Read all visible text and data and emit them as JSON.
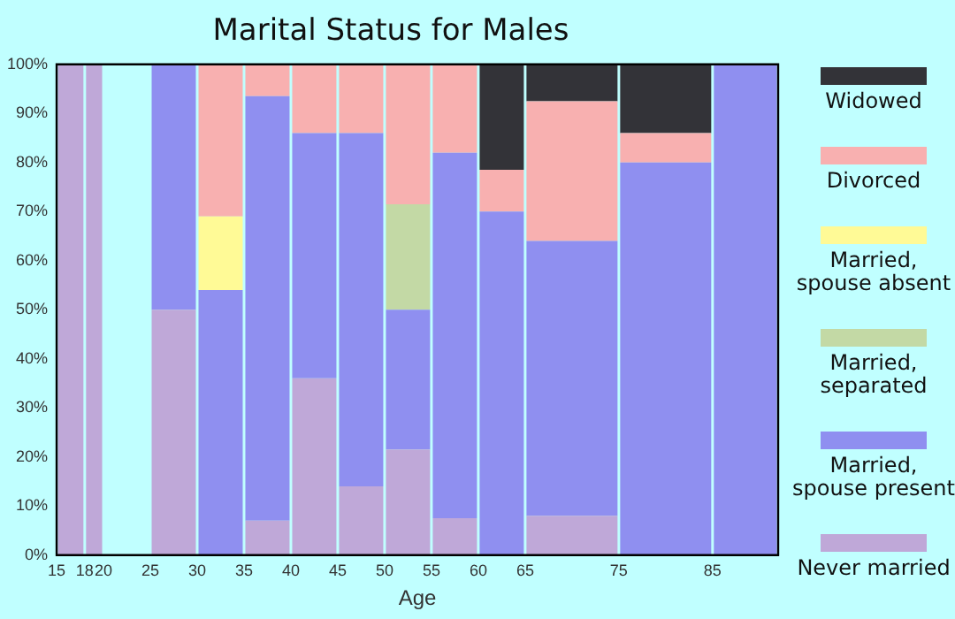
{
  "chart_data": {
    "type": "bar",
    "title": "Marital Status for Males",
    "xlabel": "Age",
    "x": [
      16.5,
      19,
      22.5,
      27.5,
      32.5,
      37.5,
      42.5,
      47.5,
      52.5,
      57.5,
      62.5,
      70,
      80,
      88.5
    ],
    "stacked": true,
    "series": [
      {
        "name": "Never married",
        "color": "#bfa8d8",
        "values": [
          100,
          100,
          null,
          50,
          0,
          7,
          36,
          14,
          21.5,
          7.5,
          0,
          8,
          0,
          0
        ]
      },
      {
        "name": "Married, spouse present",
        "color": "#8f8ff0",
        "values": [
          0,
          0,
          null,
          50,
          54,
          86.5,
          50,
          72,
          28.5,
          74.5,
          70,
          56,
          80,
          100
        ]
      },
      {
        "name": "Married, separated",
        "color": "#c3d9a5",
        "values": [
          0,
          0,
          null,
          0,
          0,
          0,
          0,
          0,
          21.5,
          0,
          0,
          0,
          0,
          0
        ]
      },
      {
        "name": "Married, spouse absent",
        "color": "#fffa96",
        "values": [
          0,
          0,
          null,
          0,
          15,
          0,
          0,
          0,
          0,
          0,
          0,
          0,
          0,
          0
        ]
      },
      {
        "name": "Divorced",
        "color": "#f8b0b0",
        "values": [
          0,
          0,
          null,
          0,
          31,
          6.5,
          14,
          14,
          28.5,
          18,
          8.5,
          28.5,
          6,
          0
        ]
      },
      {
        "name": "Widowed",
        "color": "#333338",
        "values": [
          0,
          0,
          null,
          0,
          0,
          0,
          0,
          0,
          0,
          0,
          21.5,
          7.5,
          14,
          0
        ]
      }
    ],
    "xlim": [
      15,
      92
    ],
    "xticks": [
      15,
      18,
      20,
      25,
      30,
      35,
      40,
      45,
      50,
      55,
      60,
      65,
      75,
      85
    ],
    "ylim": [
      0,
      100
    ],
    "yticks": [
      {
        "value": 0,
        "label": "0%"
      },
      {
        "value": 10,
        "label": "10%"
      },
      {
        "value": 20,
        "label": "20%"
      },
      {
        "value": 30,
        "label": "30%"
      },
      {
        "value": 40,
        "label": "40%"
      },
      {
        "value": 50,
        "label": "50%"
      },
      {
        "value": 60,
        "label": "60%"
      },
      {
        "value": 70,
        "label": "70%"
      },
      {
        "value": 80,
        "label": "80%"
      },
      {
        "value": 90,
        "label": "90%"
      },
      {
        "value": 100,
        "label": "100%"
      }
    ],
    "grid": false,
    "legend": "right"
  }
}
